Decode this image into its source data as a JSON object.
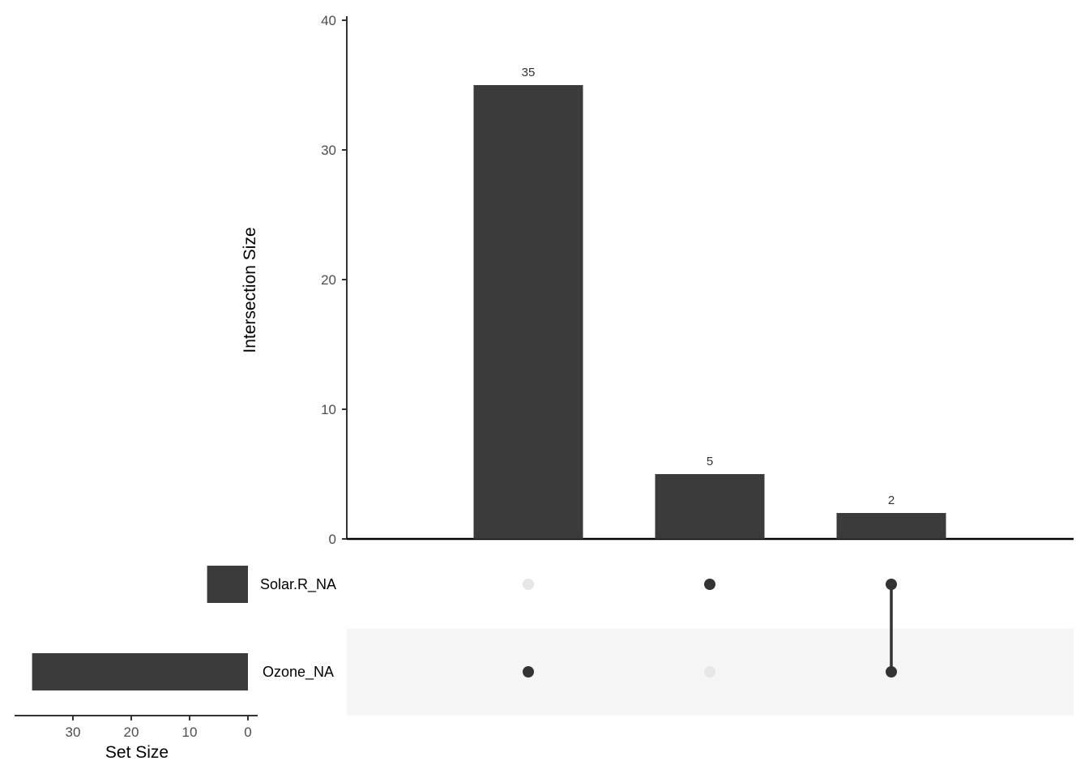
{
  "chart_data": {
    "type": "bar",
    "intersections": [
      {
        "sets": [
          "Ozone_NA"
        ],
        "size": 35
      },
      {
        "sets": [
          "Solar.R_NA"
        ],
        "size": 5
      },
      {
        "sets": [
          "Solar.R_NA",
          "Ozone_NA"
        ],
        "size": 2
      }
    ],
    "bar_labels": [
      "35",
      "5",
      "2"
    ],
    "ylabel": "Intersection Size",
    "ylim": [
      0,
      40
    ],
    "yticks": [
      0,
      10,
      20,
      30,
      40
    ],
    "sets": [
      {
        "name": "Solar.R_NA",
        "size": 7
      },
      {
        "name": "Ozone_NA",
        "size": 37
      }
    ],
    "set_size_xlabel": "Set Size",
    "set_size_xticks": [
      30,
      20,
      10,
      0
    ],
    "set_size_max": 40,
    "colors": {
      "bar": "#3b3b3b",
      "dot_active": "#333333",
      "dot_inactive": "#e6e6e6",
      "row_shade": "#f5f5f5"
    }
  }
}
